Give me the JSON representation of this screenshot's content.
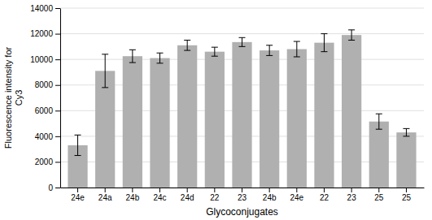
{
  "chart_data": {
    "type": "bar",
    "categories": [
      "24e",
      "24a",
      "24b",
      "24c",
      "24d",
      "22",
      "23",
      "24b",
      "24e",
      "22",
      "23",
      "25",
      "25"
    ],
    "values": [
      3300,
      9100,
      10250,
      10100,
      11100,
      10600,
      11350,
      10700,
      10800,
      11300,
      11900,
      5150,
      4300
    ],
    "errors": [
      800,
      1300,
      500,
      400,
      400,
      350,
      350,
      400,
      600,
      700,
      400,
      600,
      300
    ],
    "color": "#b0b0b0",
    "xlabel": "Glycoconjugates",
    "ylabel": "Fluorescence intensity for\nCy3",
    "ylim": [
      0,
      14000
    ],
    "yticks": [
      0,
      2000,
      4000,
      6000,
      8000,
      10000,
      12000,
      14000
    ],
    "grid": true
  }
}
